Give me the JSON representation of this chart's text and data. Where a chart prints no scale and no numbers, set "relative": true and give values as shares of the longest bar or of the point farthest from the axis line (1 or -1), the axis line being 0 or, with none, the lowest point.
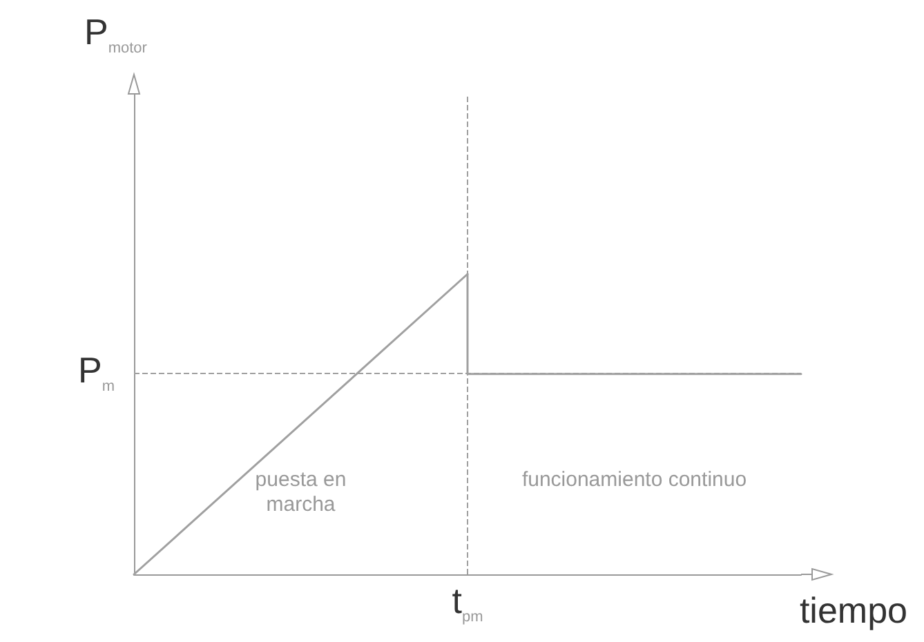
{
  "chart_data": {
    "type": "line",
    "relative": true,
    "xlabel": "tiempo",
    "categories": [
      null,
      null,
      null
    ],
    "series": [
      {
        "color": "#a0a0a0",
        "values": [
          0,
          1,
          null
        ]
      },
      {
        "type": "step",
        "color": "#a0a0a0",
        "values": [
          null,
          1,
          0.667
        ]
      }
    ],
    "ref_lines": [
      {
        "axis": "y",
        "value": 0.667,
        "label": "P$_{m}$",
        "line_style": "dashed",
        "color": "#a0a0a0"
      }
    ],
    "annotations": [
      "t$_{pm}$",
      "puesta en marcha",
      "funcionamiento continuo",
      "P$_{motor}$"
    ],
    "marker": "none",
    "line_style": "solid",
    "grid": false
  }
}
